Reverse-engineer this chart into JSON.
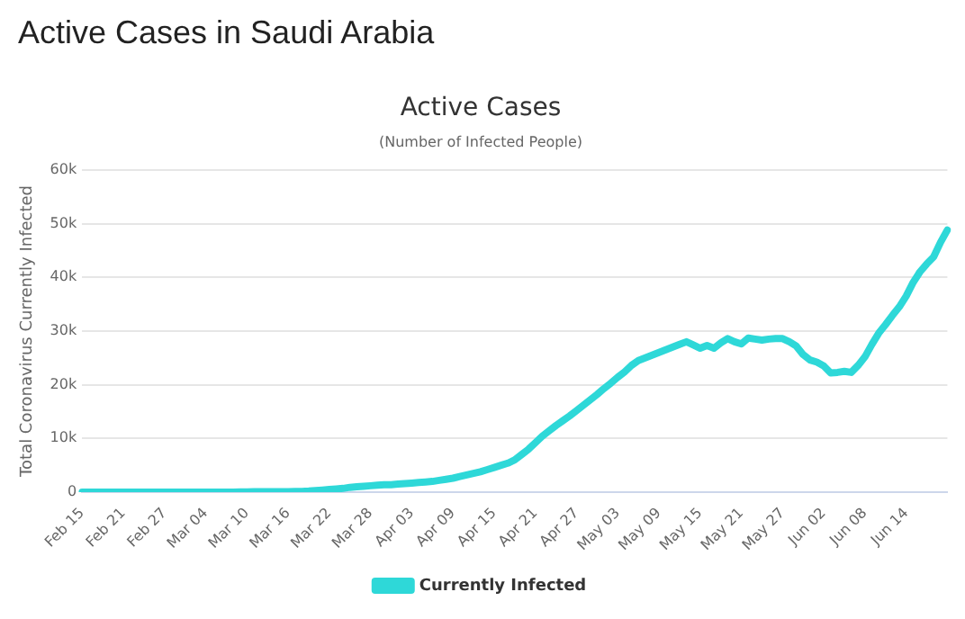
{
  "chart_data": {
    "type": "line",
    "title": "Active Cases",
    "subtitle": "(Number of Infected People)",
    "ylabel": "Total Coronavirus Currently Infected",
    "annotations": [
      "Active Cases in Saudi Arabia"
    ],
    "categories": [
      "Feb 15",
      null,
      null,
      null,
      null,
      null,
      "Feb 21",
      null,
      null,
      null,
      null,
      null,
      "Feb 27",
      null,
      null,
      null,
      null,
      null,
      "Mar 04",
      null,
      null,
      null,
      null,
      null,
      "Mar 10",
      null,
      null,
      null,
      null,
      null,
      "Mar 16",
      null,
      null,
      null,
      null,
      null,
      "Mar 22",
      null,
      null,
      null,
      null,
      null,
      "Mar 28",
      null,
      null,
      null,
      null,
      null,
      "Apr 03",
      null,
      null,
      null,
      null,
      null,
      "Apr 09",
      null,
      null,
      null,
      null,
      null,
      "Apr 15",
      null,
      null,
      null,
      null,
      null,
      "Apr 21",
      null,
      null,
      null,
      null,
      null,
      "Apr 27",
      null,
      null,
      null,
      null,
      null,
      "May 03",
      null,
      null,
      null,
      null,
      null,
      "May 09",
      null,
      null,
      null,
      null,
      null,
      "May 15",
      null,
      null,
      null,
      null,
      null,
      "May 21",
      null,
      null,
      null,
      null,
      null,
      "May 27",
      null,
      null,
      null,
      null,
      null,
      "Jun 02",
      null,
      null,
      null,
      null,
      null,
      "Jun 08",
      null,
      null,
      null,
      null,
      null,
      "Jun 14",
      null,
      null,
      null,
      null,
      null,
      null
    ],
    "series": [
      {
        "name": "Currently Infected",
        "color": "#2ed8d8",
        "values": [
          0,
          0,
          0,
          0,
          0,
          0,
          0,
          0,
          0,
          0,
          0,
          0,
          0,
          0,
          0,
          0,
          0,
          0,
          0,
          0,
          0,
          20,
          20,
          40,
          60,
          80,
          100,
          100,
          100,
          100,
          100,
          120,
          150,
          200,
          300,
          400,
          500,
          600,
          700,
          900,
          1000,
          1100,
          1200,
          1300,
          1400,
          1400,
          1500,
          1600,
          1700,
          1800,
          1900,
          2000,
          2200,
          2400,
          2600,
          2900,
          3200,
          3500,
          3800,
          4200,
          4600,
          5000,
          5400,
          6000,
          7000,
          8000,
          9200,
          10400,
          11400,
          12400,
          13300,
          14200,
          15200,
          16200,
          17200,
          18200,
          19300,
          20300,
          21400,
          22400,
          23600,
          24500,
          25000,
          25500,
          26000,
          26500,
          27000,
          27500,
          28000,
          27400,
          26800,
          27300,
          26800,
          27800,
          28600,
          28000,
          27600,
          28700,
          28500,
          28300,
          28500,
          28600,
          28600,
          28000,
          27200,
          25600,
          24600,
          24200,
          23500,
          22200,
          22300,
          22500,
          22300,
          23600,
          25200,
          27500,
          29600,
          31200,
          32900,
          34500,
          36500,
          39000,
          41000,
          42500,
          43800,
          46500,
          48800
        ]
      }
    ],
    "ylim": [
      0,
      60000
    ],
    "yticks": [
      0,
      {
        "value": 10000,
        "label": "10k"
      },
      {
        "value": 20000,
        "label": "20k"
      },
      {
        "value": 30000,
        "label": "30k"
      },
      {
        "value": 40000,
        "label": "40k"
      },
      {
        "value": 50000,
        "label": "50k"
      },
      {
        "value": 60000,
        "label": "60k"
      }
    ],
    "grid": "y",
    "legend": "bottom"
  }
}
